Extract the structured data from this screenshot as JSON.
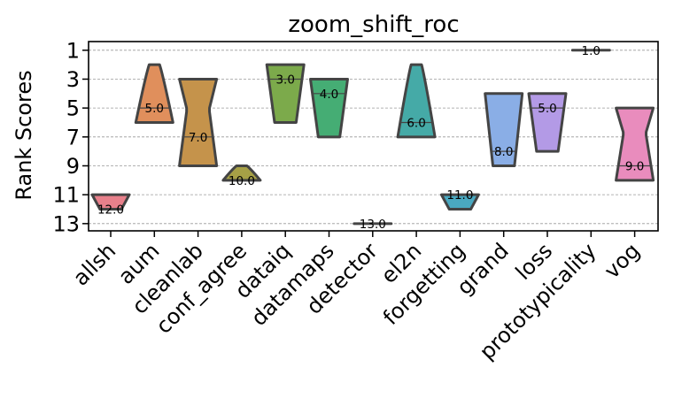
{
  "chart_data": {
    "type": "violin",
    "title": "zoom_shift_roc",
    "xlabel": "",
    "ylabel": "Rank Scores",
    "ylim": [
      13.5,
      0.4
    ],
    "yticks": [
      1,
      3,
      5,
      7,
      9,
      11,
      13
    ],
    "ytick_labels": [
      "1",
      "3",
      "5",
      "7",
      "9",
      "11",
      "13"
    ],
    "grid": "horizontal-dashed",
    "categories": [
      "allsh",
      "aum",
      "cleanlab",
      "conf_agree",
      "dataiq",
      "datamaps",
      "detector",
      "el2n",
      "forgetting",
      "grand",
      "loss",
      "prototypicality",
      "vog"
    ],
    "series": [
      {
        "name": "allsh",
        "min": 11,
        "max": 12,
        "median": 12.0,
        "median_label": "12.0",
        "color": "#e8808b",
        "shape": "taper"
      },
      {
        "name": "aum",
        "min": 2,
        "max": 6,
        "median": 5.0,
        "median_label": "5.0",
        "color": "#e08f5c",
        "shape": "topnarrow"
      },
      {
        "name": "cleanlab",
        "min": 3,
        "max": 9,
        "median": 7.0,
        "median_label": "7.0",
        "color": "#c5934b",
        "shape": "flare"
      },
      {
        "name": "conf_agree",
        "min": 9,
        "max": 10,
        "median": 10.0,
        "median_label": "10.0",
        "color": "#a6a046",
        "shape": "topnarrow"
      },
      {
        "name": "dataiq",
        "min": 2,
        "max": 6,
        "median": 3.0,
        "median_label": "3.0",
        "color": "#7caa4b",
        "shape": "taper"
      },
      {
        "name": "datamaps",
        "min": 3,
        "max": 7,
        "median": 4.0,
        "median_label": "4.0",
        "color": "#45ad74",
        "shape": "taper"
      },
      {
        "name": "detector",
        "min": 13,
        "max": 13,
        "median": 13.0,
        "median_label": "13.0",
        "color": "#48ad92",
        "shape": "flat"
      },
      {
        "name": "el2n",
        "min": 2,
        "max": 7,
        "median": 6.0,
        "median_label": "6.0",
        "color": "#45aaa7",
        "shape": "topnarrow"
      },
      {
        "name": "forgetting",
        "min": 11,
        "max": 12,
        "median": 11.0,
        "median_label": "11.0",
        "color": "#4aa8c0",
        "shape": "taper"
      },
      {
        "name": "grand",
        "min": 4,
        "max": 9,
        "median": 8.0,
        "median_label": "8.0",
        "color": "#8aaee6",
        "shape": "taper"
      },
      {
        "name": "loss",
        "min": 4,
        "max": 8,
        "median": 5.0,
        "median_label": "5.0",
        "color": "#b39ae6",
        "shape": "taper"
      },
      {
        "name": "prototypicality",
        "min": 1,
        "max": 1,
        "median": 1.0,
        "median_label": "1.0",
        "color": "#d88fd8",
        "shape": "flat"
      },
      {
        "name": "vog",
        "min": 5,
        "max": 10,
        "median": 9.0,
        "median_label": "9.0",
        "color": "#e98cbd",
        "shape": "flare"
      }
    ]
  }
}
